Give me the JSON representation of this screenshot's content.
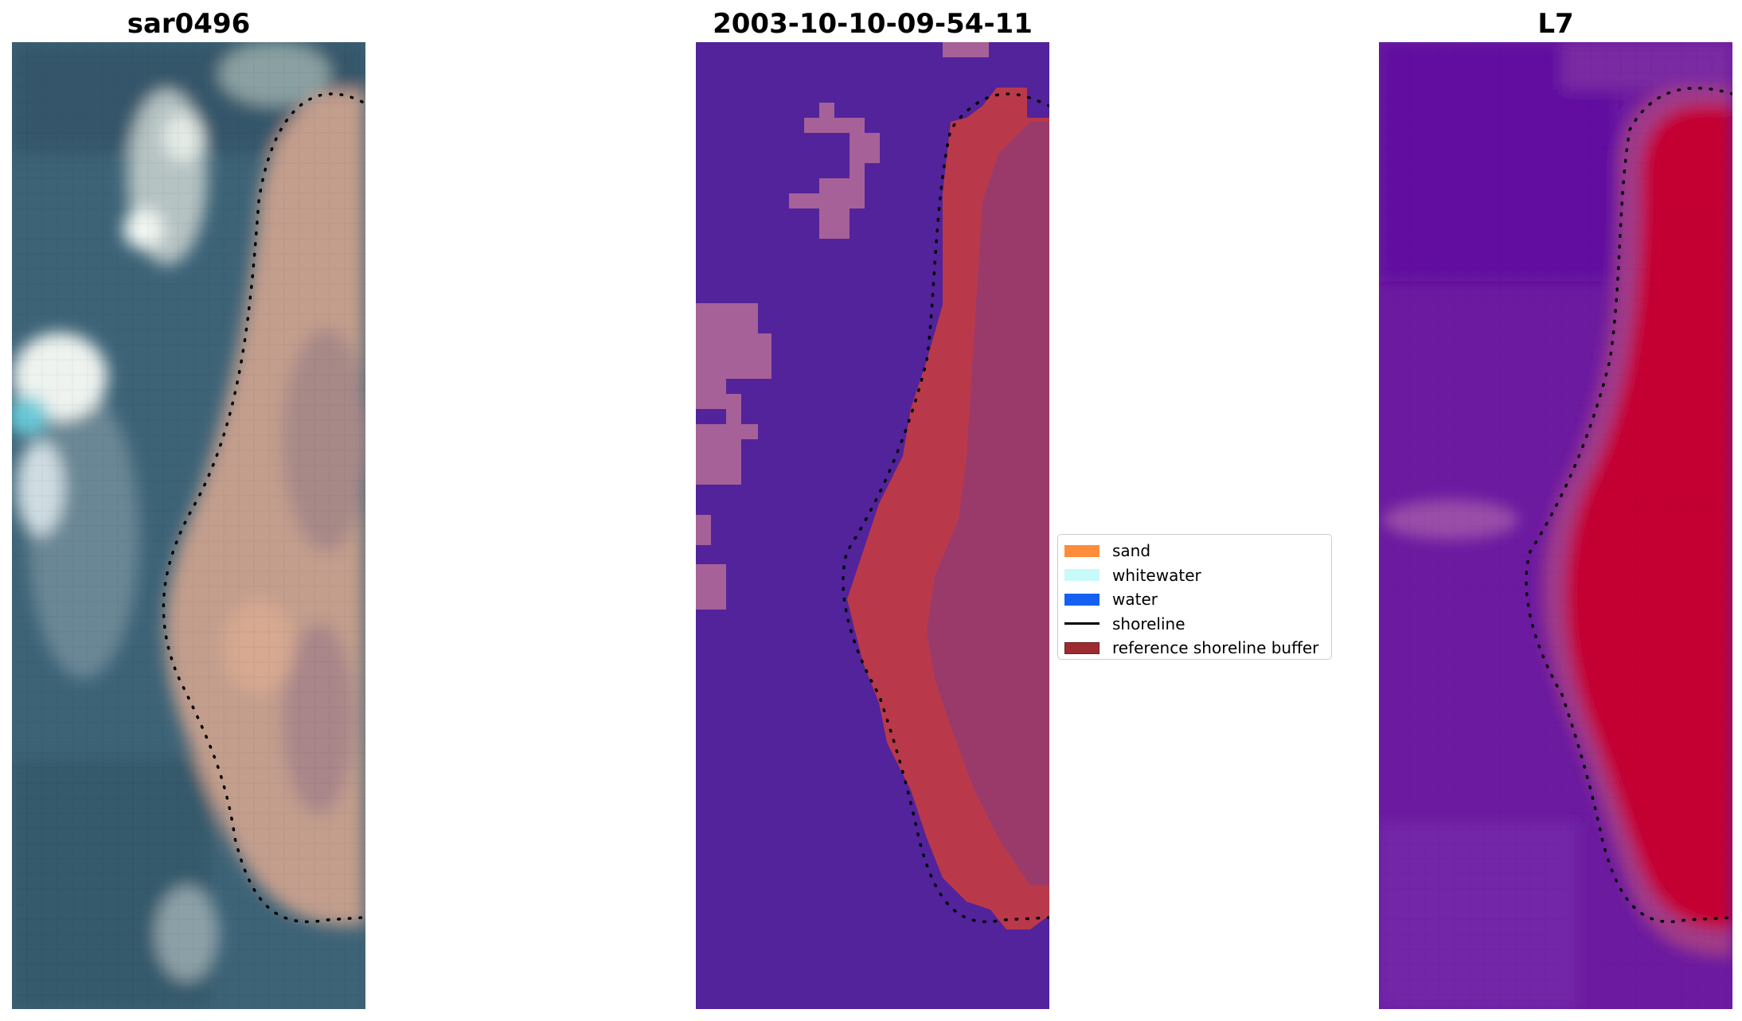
{
  "panels": [
    {
      "title": "sar0496"
    },
    {
      "title": "2003-10-10-09-54-11"
    },
    {
      "title": "L7"
    }
  ],
  "legend": {
    "items": [
      {
        "label": "sand",
        "color": "#ff8c3a",
        "kind": "patch"
      },
      {
        "label": "whitewater",
        "color": "#c8fafa",
        "kind": "patch"
      },
      {
        "label": "water",
        "color": "#1560f0",
        "kind": "patch"
      },
      {
        "label": "shoreline",
        "color": "#000000",
        "kind": "line"
      },
      {
        "label": "reference shoreline buffer",
        "color": "#9e2b31",
        "kind": "patch"
      }
    ]
  },
  "colors": {
    "classified_background": "#52239a",
    "classified_blob": "#a56198",
    "classified_sand_band": "#b9394b",
    "classified_land": "#9a3a6a",
    "mndwi_water": "#6c1aa0",
    "mndwi_land": "#c40432",
    "rgb_water": "#3b5f72",
    "rgb_land": "#c39a88"
  }
}
